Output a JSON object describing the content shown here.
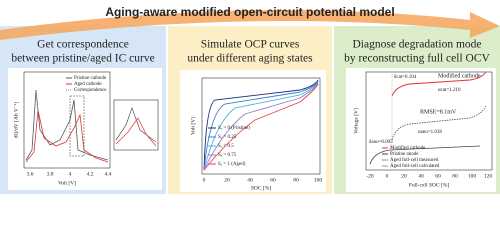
{
  "banner": {
    "title": "Aging-aware modified open-circuit potential model"
  },
  "panels": [
    {
      "heading": [
        "Get correspondence",
        "between pristine/aged IC curve"
      ],
      "chart": {
        "ylabel": "dQ/dV [Ah V⁻¹]",
        "xlabel": "Volt [V]",
        "xticks": [
          "3.6",
          "3.8",
          "4",
          "4.2",
          "4.4"
        ],
        "legend": [
          "Pristine cathode",
          "Aged cathode",
          "Correspondence"
        ]
      }
    },
    {
      "heading": [
        "Simulate OCP curves",
        "under different aging states"
      ],
      "chart": {
        "ylabel": "Volt [V]",
        "xlabel": "SOC [%]",
        "xticks": [
          "0",
          "20",
          "40",
          "60",
          "80",
          "100"
        ],
        "legend": [
          "Sₐ = 0 (Pristine)",
          "Sₐ = 0.25",
          "Sₐ = 0.5",
          "Sₐ = 0.75",
          "Sₐ = 1 (Aged)"
        ]
      }
    },
    {
      "heading": [
        "Diagnose degradation mode",
        "by reconstructing full cell OCV"
      ],
      "chart": {
        "ylabel": "Voltage [V]",
        "xlabel": "Full-cell SOC [%]",
        "xticks": [
          "-20",
          "0",
          "20",
          "40",
          "60",
          "80",
          "100",
          "120"
        ],
        "annotations": [
          "δcat=0.104",
          "Modified cathode",
          "αcat=1.210",
          "RMSE=8.1mV",
          "αano=1.018",
          "δano=0.005"
        ],
        "legend": [
          "Modified cathode",
          "Pristine anode",
          "Aged full-cell measured",
          "Aged full-cell calculated"
        ]
      }
    }
  ]
}
